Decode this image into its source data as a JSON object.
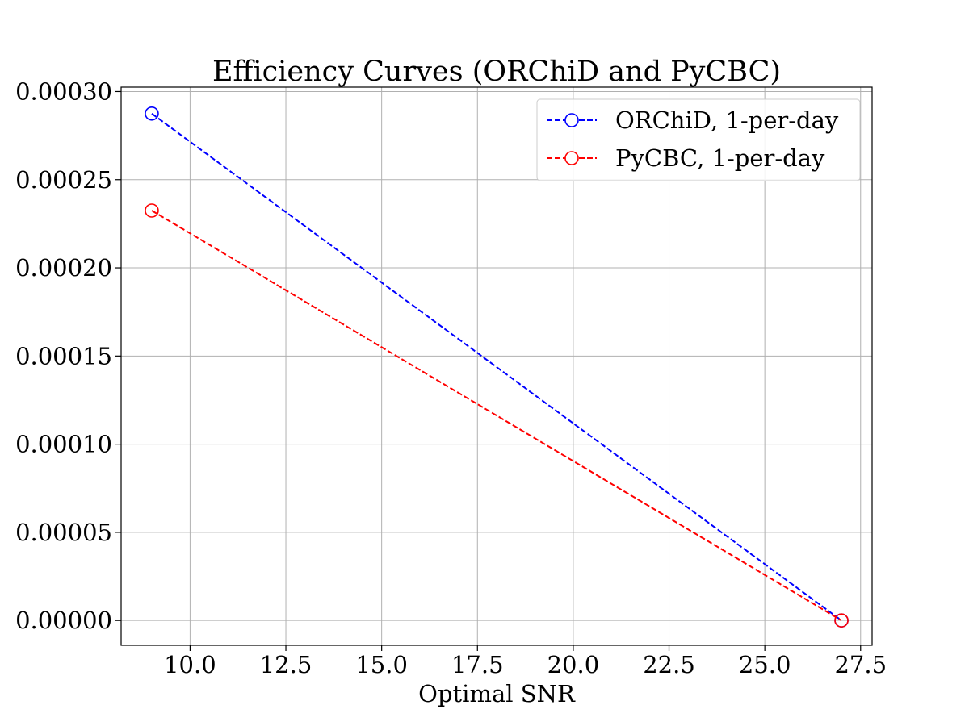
{
  "chart_data": {
    "type": "line",
    "title": "Efficiency Curves (ORChiD and PyCBC)",
    "xlabel": "Optimal SNR",
    "ylabel": "",
    "xlim": [
      8.2,
      27.8
    ],
    "ylim": [
      -1.41e-05,
      0.0003025
    ],
    "xticks": [
      10.0,
      12.5,
      15.0,
      17.5,
      20.0,
      22.5,
      25.0,
      27.5
    ],
    "xtick_labels": [
      "10.0",
      "12.5",
      "15.0",
      "17.5",
      "20.0",
      "22.5",
      "25.0",
      "27.5"
    ],
    "yticks": [
      0.0,
      5e-05,
      0.0001,
      0.00015,
      0.0002,
      0.00025,
      0.0003
    ],
    "ytick_labels": [
      "0.00000",
      "0.00005",
      "0.00010",
      "0.00015",
      "0.00020",
      "0.00025",
      "0.00030"
    ],
    "grid": true,
    "legend_position": "top-right",
    "series": [
      {
        "name": "ORChiD, 1-per-day",
        "color": "#0000ff",
        "linestyle": "dashed",
        "marker": "open-circle",
        "x": [
          9.0,
          27.0
        ],
        "y": [
          0.0002875,
          0.0
        ]
      },
      {
        "name": "PyCBC, 1-per-day",
        "color": "#ff0000",
        "linestyle": "dashed",
        "marker": "open-circle",
        "x": [
          9.0,
          27.0
        ],
        "y": [
          0.0002325,
          0.0
        ]
      }
    ]
  }
}
